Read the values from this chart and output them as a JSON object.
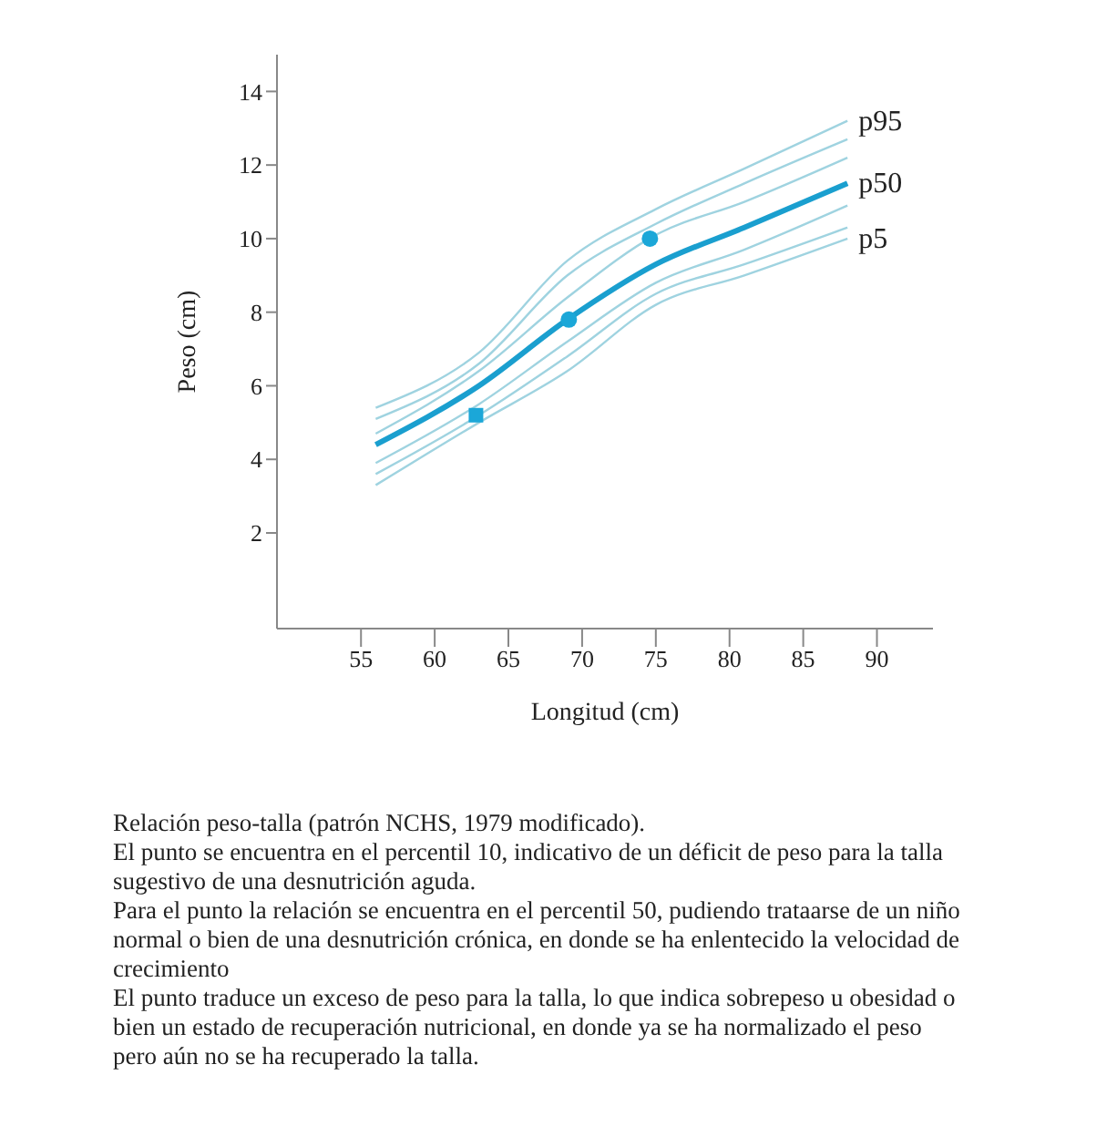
{
  "chart_data": {
    "type": "line",
    "xlabel": "Longitud (cm)",
    "ylabel": "Peso (cm)",
    "xlim": [
      49.3,
      93.8
    ],
    "xticks": [
      55,
      60,
      65,
      70,
      75,
      80,
      85,
      90
    ],
    "ylim": [
      -0.6,
      15
    ],
    "yticks": [
      2,
      4,
      6,
      8,
      10,
      12,
      14
    ],
    "grid": false,
    "legend": false,
    "marker": "none",
    "line_style": "solid",
    "series": [
      {
        "name": "p95",
        "color": "#9fd3e0",
        "x": [
          56,
          63,
          69,
          75,
          81,
          88
        ],
        "values": [
          5.4,
          6.9,
          9.4,
          10.8,
          11.9,
          13.2
        ]
      },
      {
        "color": "#9fd3e0",
        "x": [
          56,
          63,
          69,
          75,
          81,
          88
        ],
        "values": [
          5.1,
          6.6,
          9.0,
          10.4,
          11.5,
          12.7
        ]
      },
      {
        "color": "#9fd3e0",
        "x": [
          56,
          63,
          69,
          75,
          81,
          88
        ],
        "values": [
          4.7,
          6.4,
          8.4,
          10.1,
          11.0,
          12.2
        ]
      },
      {
        "name": "p50",
        "color": "#1a9fcf",
        "x": [
          56,
          63,
          69,
          75,
          81,
          88
        ],
        "values": [
          4.4,
          6.0,
          7.8,
          9.3,
          10.3,
          11.5
        ]
      },
      {
        "color": "#9fd3e0",
        "x": [
          56,
          63,
          69,
          75,
          81,
          88
        ],
        "values": [
          3.9,
          5.5,
          7.2,
          8.8,
          9.7,
          10.9
        ]
      },
      {
        "color": "#9fd3e0",
        "x": [
          56,
          63,
          69,
          75,
          81,
          88
        ],
        "values": [
          3.6,
          5.2,
          6.8,
          8.5,
          9.3,
          10.3
        ]
      },
      {
        "name": "p5",
        "color": "#9fd3e0",
        "x": [
          56,
          63,
          69,
          75,
          81,
          88
        ],
        "values": [
          3.3,
          5.0,
          6.4,
          8.2,
          9.0,
          10.0
        ]
      },
      {
        "type": "scatter",
        "marker": "square",
        "color": "#1ba7d8",
        "x": [
          62.8
        ],
        "values": [
          5.2
        ]
      },
      {
        "type": "scatter",
        "marker": "circle",
        "color": "#1ba7d8",
        "x": [
          69.1
        ],
        "values": [
          7.8
        ]
      },
      {
        "type": "scatter",
        "marker": "circle",
        "color": "#1ba7d8",
        "x": [
          74.6
        ],
        "values": [
          10.0
        ]
      }
    ],
    "annotations": [
      "Relación peso-talla (patrón NCHS, 1979 modificado).",
      "El punto se encuentra en el percentil 10, indicativo de un déficit de peso para la talla sugestivo de una desnutrición aguda.",
      "Para el punto la relación se encuentra en el percentil 50, pudiendo trataarse de un niño normal o bien de una desnutrición crónica, en donde se ha enlentecido la velocidad de crecimiento",
      "El punto traduce un exceso de peso para la talla, lo que indica sobrepeso u obesidad o bien un estado de recuperación nutricional, en donde ya se ha normalizado el peso pero aún no se ha recuperado la talla."
    ]
  }
}
